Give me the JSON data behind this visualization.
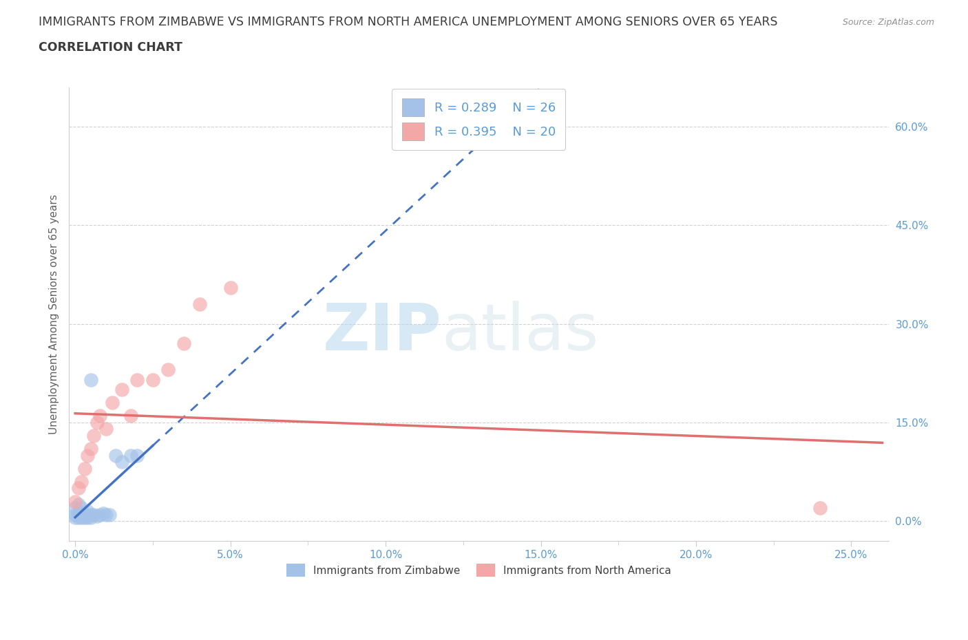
{
  "title_line1": "IMMIGRANTS FROM ZIMBABWE VS IMMIGRANTS FROM NORTH AMERICA UNEMPLOYMENT AMONG SENIORS OVER 65 YEARS",
  "title_line2": "CORRELATION CHART",
  "source": "Source: ZipAtlas.com",
  "ylabel": "Unemployment Among Seniors over 65 years",
  "watermark_zip": "ZIP",
  "watermark_atlas": "atlas",
  "legend_R_zim": "R = 0.289",
  "legend_N_zim": "N = 26",
  "legend_R_nam": "R = 0.395",
  "legend_N_nam": "N = 20",
  "xlim": [
    -0.002,
    0.262
  ],
  "ylim": [
    -0.03,
    0.66
  ],
  "xticks": [
    0.0,
    0.025,
    0.05,
    0.075,
    0.1,
    0.125,
    0.15,
    0.175,
    0.2,
    0.225,
    0.25
  ],
  "xtick_major": [
    0.0,
    0.05,
    0.1,
    0.15,
    0.2,
    0.25
  ],
  "yticks_right": [
    0.0,
    0.15,
    0.3,
    0.45,
    0.6
  ],
  "grid_color": "#d0d0d0",
  "background_color": "#ffffff",
  "title_color": "#3c3c3c",
  "title_fontsize": 12.5,
  "subtitle_fontsize": 12.5,
  "axis_tick_color": "#5b9bd5",
  "source_color": "#909090",
  "legend_text_color": "#5b9bd5",
  "zim_color": "#a4c2e8",
  "nam_color": "#f4a7a7",
  "zim_line_color": "#4472c4",
  "nam_line_color": "#e07070",
  "zim_label": "Immigrants from Zimbabwe",
  "nam_label": "Immigrants from North America",
  "zim_x": [
    0.0,
    0.0,
    0.0,
    0.001,
    0.001,
    0.001,
    0.002,
    0.002,
    0.002,
    0.003,
    0.003,
    0.004,
    0.004,
    0.005,
    0.005,
    0.006,
    0.007,
    0.008,
    0.009,
    0.01,
    0.011,
    0.013,
    0.015,
    0.018,
    0.02,
    0.005
  ],
  "zim_y": [
    0.005,
    0.01,
    0.02,
    0.005,
    0.012,
    0.025,
    0.005,
    0.01,
    0.02,
    0.005,
    0.01,
    0.005,
    0.015,
    0.005,
    0.01,
    0.01,
    0.008,
    0.01,
    0.012,
    0.01,
    0.01,
    0.1,
    0.09,
    0.1,
    0.1,
    0.215
  ],
  "nam_x": [
    0.0,
    0.001,
    0.002,
    0.003,
    0.004,
    0.005,
    0.006,
    0.007,
    0.008,
    0.01,
    0.012,
    0.015,
    0.018,
    0.02,
    0.025,
    0.03,
    0.035,
    0.04,
    0.05,
    0.24
  ],
  "nam_y": [
    0.03,
    0.05,
    0.06,
    0.08,
    0.1,
    0.11,
    0.13,
    0.15,
    0.16,
    0.14,
    0.18,
    0.2,
    0.16,
    0.215,
    0.215,
    0.23,
    0.27,
    0.33,
    0.355,
    0.02
  ]
}
